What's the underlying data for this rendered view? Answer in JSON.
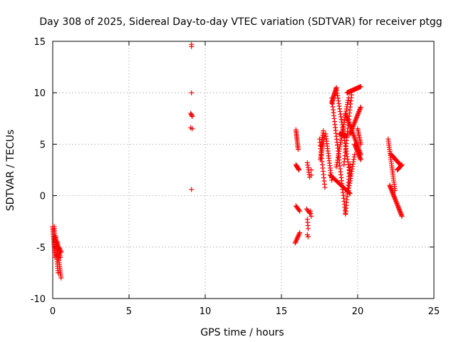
{
  "chart_data": {
    "type": "scatter",
    "title": "Day 308 of 2025, Sidereal Day-to-day VTEC variation (SDTVAR) for receiver ptgg",
    "xlabel": "GPS time / hours",
    "ylabel": "SDTVAR / TECUs",
    "xlim": [
      0,
      25
    ],
    "ylim": [
      -10,
      15
    ],
    "x_ticks": [
      0,
      5,
      10,
      15,
      20,
      25
    ],
    "y_ticks": [
      -10,
      -5,
      0,
      5,
      10,
      15
    ],
    "x_tick_labels": [
      "0",
      "5",
      "10",
      "15",
      "20",
      "25"
    ],
    "y_tick_labels": [
      "-10",
      "-5",
      "0",
      "5",
      "10",
      "15"
    ],
    "grid": true,
    "marker": "plus",
    "color": "#ff0000",
    "segments": [
      {
        "x0": 0.0,
        "y0": -3.0,
        "x1": 0.15,
        "y1": -6.0,
        "n": 20
      },
      {
        "x0": 0.1,
        "y0": -3.0,
        "x1": 0.35,
        "y1": -7.5,
        "n": 22
      },
      {
        "x0": 0.2,
        "y0": -4.0,
        "x1": 0.55,
        "y1": -8.0,
        "n": 22
      },
      {
        "x0": 0.3,
        "y0": -4.5,
        "x1": 0.5,
        "y1": -6.0,
        "n": 10
      },
      {
        "x0": 0.4,
        "y0": -5.0,
        "x1": 0.55,
        "y1": -5.5,
        "n": 6
      },
      {
        "x0": 9.1,
        "y0": 14.7,
        "x1": 9.1,
        "y1": 14.5,
        "n": 2
      },
      {
        "x0": 9.1,
        "y0": 10.0,
        "x1": 9.1,
        "y1": 10.0,
        "n": 1
      },
      {
        "x0": 9.05,
        "y0": 8.0,
        "x1": 9.15,
        "y1": 7.7,
        "n": 4
      },
      {
        "x0": 9.05,
        "y0": 6.6,
        "x1": 9.15,
        "y1": 6.5,
        "n": 2
      },
      {
        "x0": 9.1,
        "y0": 0.6,
        "x1": 9.1,
        "y1": 0.6,
        "n": 1
      },
      {
        "x0": 15.95,
        "y0": 6.4,
        "x1": 16.1,
        "y1": 4.5,
        "n": 14
      },
      {
        "x0": 15.95,
        "y0": 3.0,
        "x1": 16.15,
        "y1": 2.5,
        "n": 8
      },
      {
        "x0": 15.95,
        "y0": -1.0,
        "x1": 16.2,
        "y1": -1.5,
        "n": 6
      },
      {
        "x0": 15.9,
        "y0": -4.6,
        "x1": 16.2,
        "y1": -3.6,
        "n": 10
      },
      {
        "x0": 16.7,
        "y0": 3.2,
        "x1": 16.85,
        "y1": 1.8,
        "n": 7
      },
      {
        "x0": 16.95,
        "y0": 2.5,
        "x1": 16.95,
        "y1": 2.0,
        "n": 2
      },
      {
        "x0": 16.65,
        "y0": -1.3,
        "x1": 16.85,
        "y1": -1.7,
        "n": 4
      },
      {
        "x0": 16.9,
        "y0": -1.5,
        "x1": 16.95,
        "y1": -2.0,
        "n": 3
      },
      {
        "x0": 16.7,
        "y0": -2.3,
        "x1": 16.75,
        "y1": -3.2,
        "n": 4
      },
      {
        "x0": 16.7,
        "y0": -3.8,
        "x1": 16.75,
        "y1": -4.0,
        "n": 2
      },
      {
        "x0": 17.55,
        "y0": 3.5,
        "x1": 17.8,
        "y1": 5.8,
        "n": 14
      },
      {
        "x0": 17.5,
        "y0": 5.5,
        "x1": 17.85,
        "y1": 0.8,
        "n": 16
      },
      {
        "x0": 17.6,
        "y0": 4.8,
        "x1": 17.75,
        "y1": 6.3,
        "n": 8
      },
      {
        "x0": 17.9,
        "y0": 6.0,
        "x1": 18.3,
        "y1": 1.5,
        "n": 20
      },
      {
        "x0": 18.2,
        "y0": 2.0,
        "x1": 19.5,
        "y1": 0.2,
        "n": 30
      },
      {
        "x0": 18.3,
        "y0": 9.0,
        "x1": 18.6,
        "y1": 10.5,
        "n": 16
      },
      {
        "x0": 18.6,
        "y0": 10.5,
        "x1": 19.5,
        "y1": 2.0,
        "n": 34
      },
      {
        "x0": 18.3,
        "y0": 9.5,
        "x1": 19.2,
        "y1": -1.7,
        "n": 40
      },
      {
        "x0": 18.6,
        "y0": 2.8,
        "x1": 19.4,
        "y1": 9.5,
        "n": 32
      },
      {
        "x0": 19.1,
        "y0": 3.0,
        "x1": 19.6,
        "y1": 9.8,
        "n": 24
      },
      {
        "x0": 19.2,
        "y0": -1.8,
        "x1": 19.5,
        "y1": 3.0,
        "n": 18
      },
      {
        "x0": 19.3,
        "y0": 10.0,
        "x1": 20.2,
        "y1": 10.6,
        "n": 30
      },
      {
        "x0": 19.5,
        "y0": 6.0,
        "x1": 20.2,
        "y1": 8.6,
        "n": 26
      },
      {
        "x0": 19.4,
        "y0": 0.5,
        "x1": 19.8,
        "y1": 4.0,
        "n": 16
      },
      {
        "x0": 19.8,
        "y0": 5.0,
        "x1": 20.2,
        "y1": 3.5,
        "n": 16
      },
      {
        "x0": 20.0,
        "y0": 6.5,
        "x1": 20.2,
        "y1": 5.0,
        "n": 10
      },
      {
        "x0": 19.2,
        "y0": 8.0,
        "x1": 20.2,
        "y1": 4.0,
        "n": 34
      },
      {
        "x0": 18.8,
        "y0": 6.0,
        "x1": 19.3,
        "y1": 5.8,
        "n": 20
      },
      {
        "x0": 22.0,
        "y0": 5.5,
        "x1": 22.45,
        "y1": 0.5,
        "n": 26
      },
      {
        "x0": 22.2,
        "y0": 4.0,
        "x1": 22.8,
        "y1": 3.0,
        "n": 18
      },
      {
        "x0": 22.1,
        "y0": 1.0,
        "x1": 22.9,
        "y1": -2.0,
        "n": 30
      },
      {
        "x0": 22.6,
        "y0": 2.5,
        "x1": 22.9,
        "y1": 3.0,
        "n": 12
      }
    ]
  }
}
